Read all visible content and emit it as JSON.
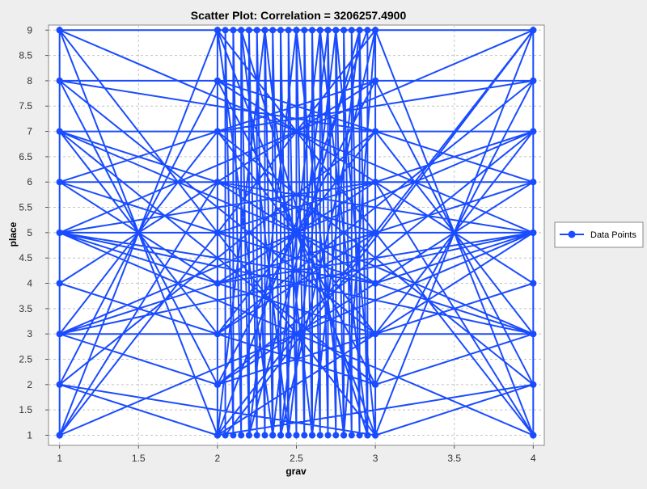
{
  "chart_data": {
    "type": "scatter",
    "title": "Scatter Plot: Correlation = 3206257.4900",
    "xlabel": "grav",
    "ylabel": "place",
    "xlim": [
      0.93,
      4.07
    ],
    "ylim": [
      0.8,
      9.1
    ],
    "x_ticks": [
      "1",
      "1.5",
      "2",
      "2.5",
      "3",
      "3.5",
      "4"
    ],
    "y_ticks": [
      "1",
      "1.5",
      "2",
      "2.5",
      "3",
      "3.5",
      "4",
      "4.5",
      "5",
      "5.5",
      "6",
      "6.5",
      "7",
      "7.5",
      "8",
      "8.5",
      "9"
    ],
    "grid": true,
    "legend_position": "right",
    "series": [
      {
        "name": "Data Points",
        "color": "#1a4cff",
        "points": [
          [
            1,
            1
          ],
          [
            1,
            9
          ],
          [
            1,
            2
          ],
          [
            1,
            8
          ],
          [
            1,
            3
          ],
          [
            1,
            7
          ],
          [
            1,
            4
          ],
          [
            1,
            6
          ],
          [
            1,
            5
          ],
          [
            4,
            1
          ],
          [
            4,
            9
          ],
          [
            4,
            2
          ],
          [
            4,
            8
          ],
          [
            4,
            3
          ],
          [
            4,
            7
          ],
          [
            4,
            4
          ],
          [
            4,
            6
          ],
          [
            4,
            5
          ],
          [
            2,
            1
          ],
          [
            2,
            9
          ],
          [
            3,
            1
          ],
          [
            3,
            9
          ],
          [
            1,
            1
          ],
          [
            2,
            9
          ],
          [
            1,
            9
          ],
          [
            2,
            1
          ],
          [
            1,
            2
          ],
          [
            2,
            8
          ],
          [
            1,
            8
          ],
          [
            2,
            2
          ],
          [
            1,
            3
          ],
          [
            2,
            7
          ],
          [
            1,
            7
          ],
          [
            2,
            3
          ],
          [
            1,
            4
          ],
          [
            2,
            6
          ],
          [
            1,
            6
          ],
          [
            2,
            4
          ],
          [
            1,
            5
          ],
          [
            2,
            5
          ],
          [
            1,
            1
          ],
          [
            3,
            9
          ],
          [
            1,
            9
          ],
          [
            3,
            1
          ],
          [
            1,
            2
          ],
          [
            3,
            7
          ],
          [
            1,
            8
          ],
          [
            3,
            3
          ],
          [
            1,
            3
          ],
          [
            3,
            5
          ],
          [
            1,
            7
          ],
          [
            3,
            2
          ],
          [
            1,
            4
          ],
          [
            3,
            8
          ],
          [
            1,
            6
          ],
          [
            3,
            4
          ],
          [
            1,
            5
          ],
          [
            3,
            6
          ],
          [
            4,
            1
          ],
          [
            3,
            9
          ],
          [
            4,
            9
          ],
          [
            3,
            1
          ],
          [
            4,
            2
          ],
          [
            3,
            8
          ],
          [
            4,
            8
          ],
          [
            3,
            2
          ],
          [
            4,
            3
          ],
          [
            3,
            7
          ],
          [
            4,
            7
          ],
          [
            3,
            3
          ],
          [
            4,
            4
          ],
          [
            3,
            6
          ],
          [
            4,
            6
          ],
          [
            3,
            4
          ],
          [
            4,
            5
          ],
          [
            3,
            5
          ],
          [
            4,
            1
          ],
          [
            2,
            9
          ],
          [
            4,
            9
          ],
          [
            2,
            1
          ],
          [
            4,
            2
          ],
          [
            2,
            7
          ],
          [
            4,
            8
          ],
          [
            2,
            3
          ],
          [
            4,
            3
          ],
          [
            2,
            5
          ],
          [
            4,
            7
          ],
          [
            2,
            2
          ],
          [
            4,
            4
          ],
          [
            2,
            8
          ],
          [
            4,
            6
          ],
          [
            2,
            4
          ],
          [
            4,
            5
          ],
          [
            2,
            6
          ],
          [
            1,
            1
          ],
          [
            4,
            5
          ],
          [
            1,
            9
          ],
          [
            4,
            5
          ],
          [
            1,
            3
          ],
          [
            4,
            7
          ],
          [
            1,
            7
          ],
          [
            4,
            3
          ],
          [
            1,
            5
          ],
          [
            4,
            1
          ],
          [
            1,
            5
          ],
          [
            4,
            9
          ],
          [
            2.05,
            1
          ],
          [
            2.05,
            9
          ],
          [
            2.1,
            1
          ],
          [
            2.1,
            9
          ],
          [
            2.15,
            1
          ],
          [
            2.15,
            9
          ],
          [
            2.2,
            1
          ],
          [
            2.2,
            9
          ],
          [
            2.25,
            1
          ],
          [
            2.25,
            9
          ],
          [
            2.3,
            1
          ],
          [
            2.3,
            9
          ],
          [
            2.35,
            1
          ],
          [
            2.35,
            9
          ],
          [
            2.4,
            1
          ],
          [
            2.4,
            9
          ],
          [
            2.45,
            1
          ],
          [
            2.45,
            9
          ],
          [
            2.5,
            1
          ],
          [
            2.5,
            9
          ],
          [
            2.55,
            1
          ],
          [
            2.55,
            9
          ],
          [
            2.6,
            1
          ],
          [
            2.6,
            9
          ],
          [
            2.65,
            1
          ],
          [
            2.65,
            9
          ],
          [
            2.7,
            1
          ],
          [
            2.7,
            9
          ],
          [
            2.75,
            1
          ],
          [
            2.75,
            9
          ],
          [
            2.8,
            1
          ],
          [
            2.8,
            9
          ],
          [
            2.85,
            1
          ],
          [
            2.85,
            9
          ],
          [
            2.9,
            1
          ],
          [
            2.9,
            9
          ],
          [
            2.95,
            1
          ],
          [
            2.95,
            9
          ],
          [
            2,
            1
          ],
          [
            2.3,
            9
          ],
          [
            2.6,
            1
          ],
          [
            2.9,
            9
          ],
          [
            2.2,
            1
          ],
          [
            2.5,
            9
          ],
          [
            2.8,
            1
          ],
          [
            3,
            9
          ],
          [
            2.4,
            1
          ],
          [
            2.7,
            9
          ],
          [
            2,
            9
          ],
          [
            2.35,
            1
          ],
          [
            2.65,
            9
          ],
          [
            2.95,
            1
          ],
          [
            2.15,
            9
          ],
          [
            2.45,
            1
          ],
          [
            2.75,
            9
          ],
          [
            3,
            1
          ],
          [
            2,
            5
          ],
          [
            3,
            5
          ],
          [
            2,
            3
          ],
          [
            3,
            7
          ],
          [
            2,
            7
          ],
          [
            3,
            3
          ],
          [
            2,
            4
          ],
          [
            3,
            6
          ],
          [
            2,
            6
          ],
          [
            3,
            4
          ],
          [
            2,
            2
          ],
          [
            3,
            8
          ],
          [
            2,
            8
          ],
          [
            3,
            2
          ]
        ]
      }
    ]
  }
}
